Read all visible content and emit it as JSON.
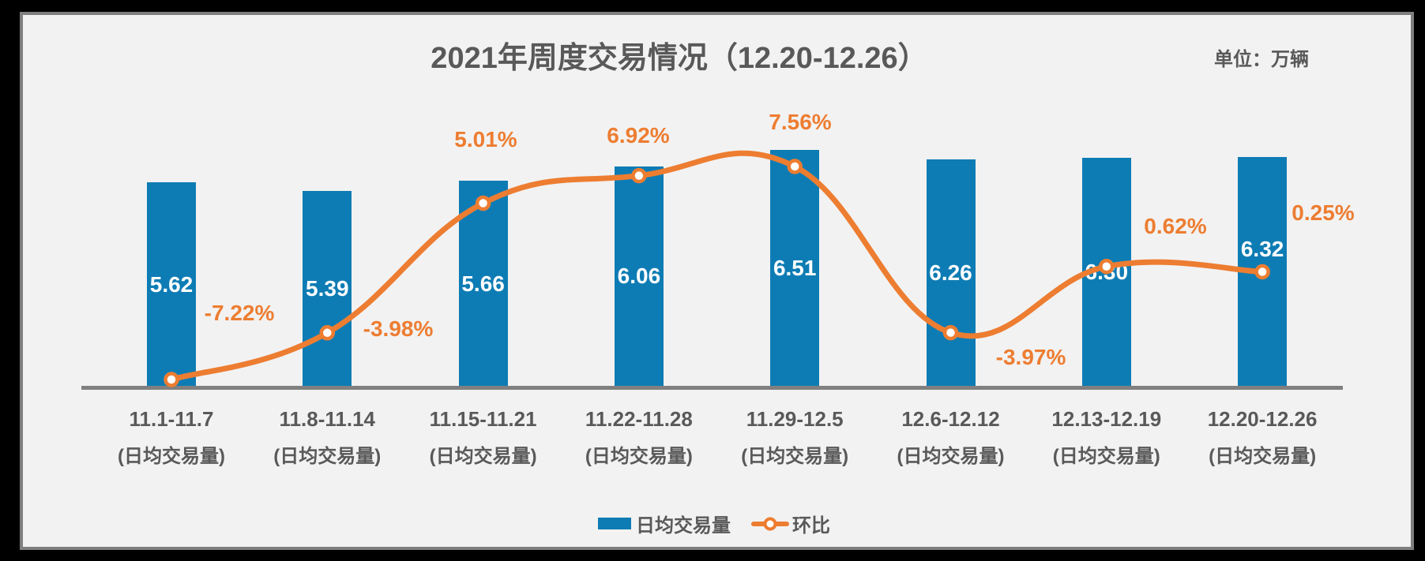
{
  "header": {
    "title": "2021年周度交易情况（12.20-12.26）",
    "unit_label": "单位：万辆"
  },
  "legend": {
    "bar_label": "日均交易量",
    "line_label": "环比"
  },
  "colors": {
    "bar": "#0e7cb4",
    "line": "#ed7d31",
    "bar_value_text": "#ffffff",
    "pct_text": "#ed7d31",
    "axis": "#808080",
    "text_gray": "#595959",
    "panel_background": "#f2f2f2",
    "panel_border": "#7f7f7f",
    "frame": "#000000"
  },
  "chart_data": {
    "type": "bar",
    "subtype": "bar+line-combo",
    "title": "2021年周度交易情况（12.20-12.26）",
    "unit": "万辆",
    "categories": [
      "11.1-11.7",
      "11.8-11.14",
      "11.15-11.21",
      "11.22-11.28",
      "11.29-12.5",
      "12.6-12.12",
      "12.13-12.19",
      "12.20-12.26"
    ],
    "category_subtitle": "(日均交易量)",
    "series": [
      {
        "name": "日均交易量",
        "type": "bar",
        "axis": "primary",
        "values": [
          5.62,
          5.39,
          5.66,
          6.06,
          6.51,
          6.26,
          6.3,
          6.32
        ],
        "labels": [
          "5.62",
          "5.39",
          "5.66",
          "6.06",
          "6.51",
          "6.26",
          "6.30",
          "6.32"
        ]
      },
      {
        "name": "环比",
        "type": "line",
        "axis": "secondary",
        "values": [
          -7.22,
          -3.98,
          5.01,
          6.92,
          7.56,
          -3.97,
          0.62,
          0.25
        ],
        "labels": [
          "-7.22%",
          "-3.98%",
          "5.01%",
          "6.92%",
          "7.56%",
          "-3.97%",
          "0.62%",
          "0.25%"
        ]
      }
    ],
    "primary_axis": {
      "min": 0,
      "tick_labels_visible": false
    },
    "secondary_axis": {
      "tick_labels_visible": false
    },
    "legend_position": "bottom",
    "grid": false
  }
}
